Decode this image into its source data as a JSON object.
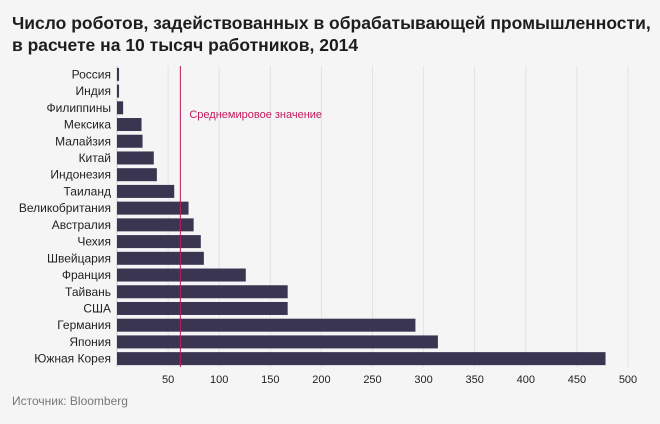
{
  "title": "Число роботов, задействованных в обрабатывающей промышленности, в расчете на 10 тысяч работников, 2014",
  "source": "Источник: Bloomberg",
  "colors": {
    "bar": "#3a3652",
    "reference": "#c2185b",
    "grid": "#e3e3e3"
  },
  "chart_data": {
    "type": "bar",
    "orientation": "horizontal",
    "categories": [
      "Россия",
      "Индия",
      "Филиппины",
      "Мексика",
      "Малайзия",
      "Китай",
      "Индонезия",
      "Таиланд",
      "Великобритания",
      "Австралия",
      "Чехия",
      "Швейцария",
      "Франция",
      "Тайвань",
      "США",
      "Германия",
      "Япония",
      "Южная Корея"
    ],
    "values": [
      2,
      2,
      6,
      24,
      25,
      36,
      39,
      56,
      70,
      75,
      82,
      85,
      126,
      167,
      167,
      292,
      314,
      478
    ],
    "xlim": [
      0,
      500
    ],
    "xticks": [
      50,
      100,
      150,
      200,
      250,
      300,
      350,
      400,
      450,
      500
    ],
    "grid": true,
    "reference_line": {
      "value": 62,
      "label": "Среднемировое значение"
    }
  }
}
